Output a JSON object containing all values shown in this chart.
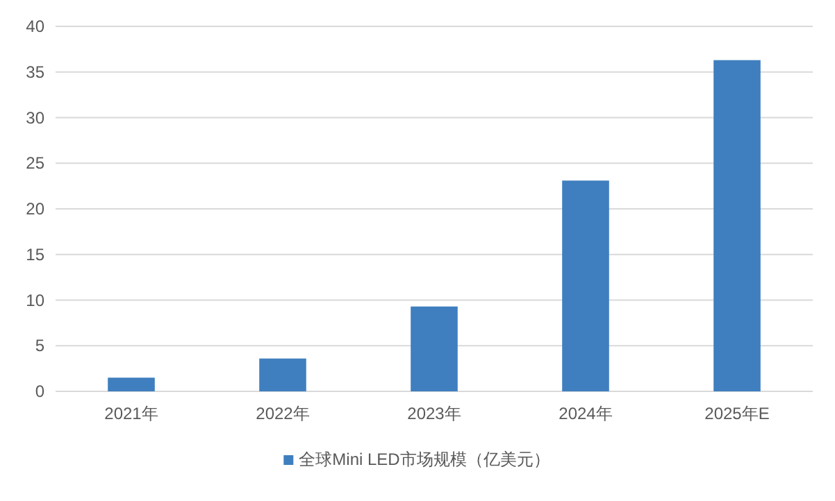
{
  "chart_data": {
    "type": "bar",
    "categories": [
      "2021年",
      "2022年",
      "2023年",
      "2024年",
      "2025年E"
    ],
    "series": [
      {
        "name": "全球Mini LED市场规模（亿美元）",
        "color": "#3f7fbf",
        "values": [
          1.5,
          3.6,
          9.3,
          23.1,
          36.3
        ]
      }
    ],
    "ylim": [
      0,
      40
    ],
    "yticks": [
      0,
      5,
      10,
      15,
      20,
      25,
      30,
      35,
      40
    ],
    "grid": "y",
    "legend": "bottom"
  }
}
